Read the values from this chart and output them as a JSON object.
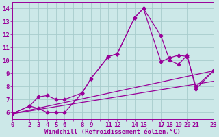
{
  "xlabel": "Windchill (Refroidissement éolien,°C)",
  "background_color": "#cce8e8",
  "grid_color": "#a8cccc",
  "line_color": "#990099",
  "marker": "D",
  "markersize": 2.5,
  "linewidth": 0.9,
  "xlim": [
    0,
    23
  ],
  "ylim": [
    5.5,
    14.5
  ],
  "xticks_major": [
    0,
    2,
    3,
    4,
    5,
    6,
    8,
    9,
    11,
    12,
    14,
    15,
    17,
    18,
    19,
    20,
    21,
    23
  ],
  "xticks_all": [
    0,
    1,
    2,
    3,
    4,
    5,
    6,
    7,
    8,
    9,
    10,
    11,
    12,
    13,
    14,
    15,
    16,
    17,
    18,
    19,
    20,
    21,
    22,
    23
  ],
  "yticks": [
    6,
    7,
    8,
    9,
    10,
    11,
    12,
    13,
    14
  ],
  "xlabel_fontsize": 6.5,
  "tick_fontsize": 6.5,
  "lines": [
    {
      "x": [
        0,
        2,
        3,
        4,
        5,
        6,
        8,
        9,
        11,
        12,
        14,
        15,
        17,
        18,
        19,
        20,
        21,
        23
      ],
      "y": [
        5.9,
        6.5,
        6.3,
        6.0,
        6.0,
        6.0,
        7.5,
        8.6,
        10.3,
        10.5,
        13.3,
        14.0,
        11.9,
        10.0,
        9.7,
        10.4,
        7.8,
        9.2
      ],
      "has_markers": true
    },
    {
      "x": [
        0,
        2,
        3,
        4,
        5,
        6,
        8,
        9,
        11,
        12,
        14,
        15,
        17,
        18,
        19,
        20,
        21,
        23
      ],
      "y": [
        5.9,
        6.5,
        7.2,
        7.3,
        7.0,
        7.0,
        7.5,
        8.6,
        10.3,
        10.5,
        13.3,
        14.0,
        9.9,
        10.2,
        10.4,
        10.3,
        8.0,
        9.2
      ],
      "has_markers": true
    },
    {
      "x": [
        0,
        23
      ],
      "y": [
        5.9,
        8.4
      ],
      "has_markers": false
    },
    {
      "x": [
        0,
        23
      ],
      "y": [
        5.9,
        9.2
      ],
      "has_markers": false
    }
  ]
}
